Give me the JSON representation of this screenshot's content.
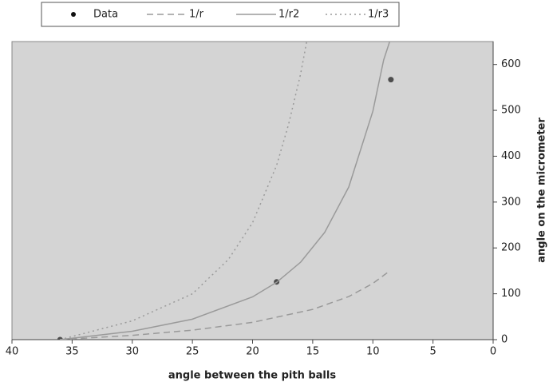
{
  "chart_data": {
    "type": "scatter",
    "xlabel": "angle between the pith balls",
    "ylabel": "angle on the micrometer",
    "xlim": [
      40,
      0
    ],
    "xticks": [
      40,
      35,
      30,
      25,
      20,
      15,
      10,
      5,
      0
    ],
    "ylim": [
      0,
      650
    ],
    "yticks": [
      0,
      100,
      200,
      300,
      400,
      500,
      600
    ],
    "y_axis_side": "right",
    "legend": "top",
    "series": [
      {
        "name": "Data",
        "color": "#4d4d4d",
        "line_style": "none",
        "x": [
          36,
          18,
          8.5
        ],
        "values": [
          0,
          126,
          567
        ]
      },
      {
        "name": "1/r",
        "color": "#9a9a9a",
        "line_style": "dashed",
        "x": [
          36,
          30,
          25,
          20,
          15,
          12,
          10,
          8.7
        ],
        "values": [
          0,
          9.4,
          20.7,
          37.7,
          66,
          94,
          122.5,
          148
        ]
      },
      {
        "name": "1/r2",
        "color": "#9a9a9a",
        "line_style": "solid",
        "x": [
          36,
          30,
          25,
          20,
          18,
          16,
          14,
          12,
          10,
          9.1,
          8.6
        ],
        "values": [
          0,
          18.3,
          44.7,
          93.3,
          125,
          169,
          234,
          333,
          498,
          610,
          650
        ]
      },
      {
        "name": "1/r3",
        "color": "#9a9a9a",
        "line_style": "dotted",
        "x": [
          36,
          30,
          25,
          22,
          20,
          18,
          17,
          16,
          15.5
        ],
        "values": [
          0,
          41,
          100,
          175,
          255,
          380,
          470,
          580,
          650
        ]
      }
    ]
  }
}
